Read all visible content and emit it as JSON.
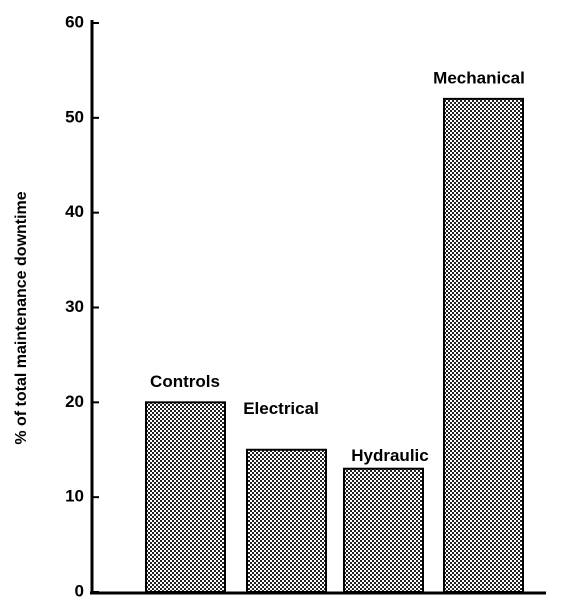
{
  "chart_data": {
    "type": "bar",
    "y_axis_label": "% of total maintenance downtime",
    "categories": [
      "Controls",
      "Electrical",
      "Hydraulic",
      "Mechanical"
    ],
    "values": [
      20,
      15,
      13,
      52
    ],
    "color": "#000000",
    "ylim": [
      0,
      60
    ],
    "yticks": [
      0,
      10,
      20,
      30,
      40,
      50,
      60
    ],
    "grid": false
  }
}
